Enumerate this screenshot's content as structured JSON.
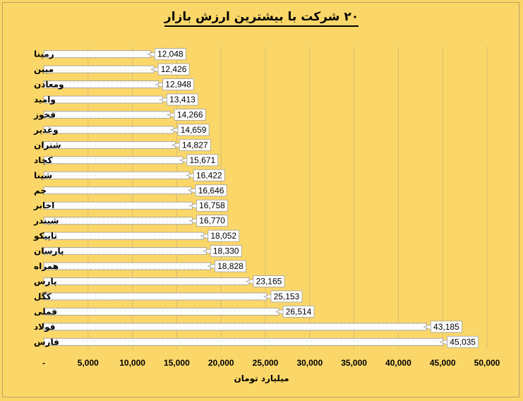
{
  "chart_data": {
    "type": "bar",
    "orientation": "horizontal",
    "title": "۲۰ شرکت با بیشترین ارزش بازار",
    "xlabel": "میلیارد تومان",
    "ylabel": "",
    "xlim": [
      0,
      50000
    ],
    "x_ticks": [
      "-",
      "5,000",
      "10,000",
      "15,000",
      "20,000",
      "25,000",
      "30,000",
      "35,000",
      "40,000",
      "45,000",
      "50,000"
    ],
    "grid": true,
    "categories": [
      "رمپنا",
      "مبین",
      "ومعادن",
      "وامید",
      "فخوز",
      "وغدیر",
      "شتران",
      "کچاد",
      "شپنا",
      "جم",
      "اخابر",
      "شبندر",
      "تاپیکو",
      "پارسان",
      "همراه",
      "پارس",
      "کگل",
      "فملی",
      "فولاد",
      "فارس"
    ],
    "values": [
      12048,
      12426,
      12948,
      13413,
      14266,
      14659,
      14827,
      15671,
      16422,
      16646,
      16758,
      16770,
      18052,
      18330,
      18828,
      23165,
      25153,
      26514,
      43185,
      45035
    ],
    "value_labels": [
      "12,048",
      "12,426",
      "12,948",
      "13,413",
      "14,266",
      "14,659",
      "14,827",
      "15,671",
      "16,422",
      "16,646",
      "16,758",
      "16,770",
      "18,052",
      "18,330",
      "18,828",
      "23,165",
      "25,153",
      "26,514",
      "43,185",
      "45,035"
    ]
  }
}
